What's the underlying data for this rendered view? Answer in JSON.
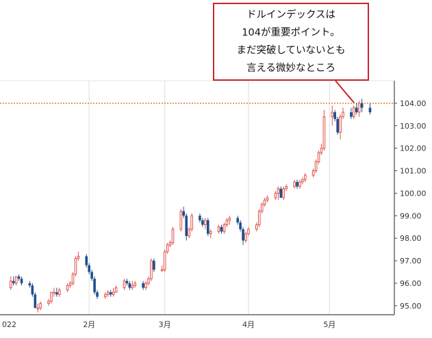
{
  "chart_data": {
    "type": "candlestick",
    "title": "",
    "xlabel": "",
    "ylabel": "",
    "ylim": [
      94.6,
      105.0
    ],
    "y_ticks": [
      "95.00",
      "96.00",
      "97.00",
      "98.00",
      "99.00",
      "100.00",
      "101.00",
      "102.00",
      "103.00",
      "104.00"
    ],
    "x_tick_labels": [
      {
        "label": "022",
        "date": "2022-01-01"
      },
      {
        "label": "2月",
        "date": "2022-02-01"
      },
      {
        "label": "3月",
        "date": "2022-03-01"
      },
      {
        "label": "4月",
        "date": "2022-04-01"
      },
      {
        "label": "5月",
        "date": "2022-05-01"
      }
    ],
    "reference_line": {
      "value": 104.0,
      "color": "#e8781f",
      "style": "dotted"
    },
    "up_color": "#e0504a",
    "down_color": "#1f4e8c",
    "gridlines": "vertical at month starts",
    "series": [
      {
        "dates": [
          "2022-01-03",
          "2022-01-04",
          "2022-01-05",
          "2022-01-06",
          "2022-01-07",
          "2022-01-10",
          "2022-01-11",
          "2022-01-12",
          "2022-01-13",
          "2022-01-14",
          "2022-01-17",
          "2022-01-18",
          "2022-01-19",
          "2022-01-20",
          "2022-01-21",
          "2022-01-24",
          "2022-01-25",
          "2022-01-26",
          "2022-01-27",
          "2022-01-28",
          "2022-01-31",
          "2022-02-01",
          "2022-02-02",
          "2022-02-03",
          "2022-02-04",
          "2022-02-07",
          "2022-02-08",
          "2022-02-09",
          "2022-02-10",
          "2022-02-11",
          "2022-02-14",
          "2022-02-15",
          "2022-02-16",
          "2022-02-17",
          "2022-02-18",
          "2022-02-21",
          "2022-02-22",
          "2022-02-23",
          "2022-02-24",
          "2022-02-25",
          "2022-02-28",
          "2022-03-01",
          "2022-03-02",
          "2022-03-03",
          "2022-03-04",
          "2022-03-07",
          "2022-03-08",
          "2022-03-09",
          "2022-03-10",
          "2022-03-11",
          "2022-03-14",
          "2022-03-15",
          "2022-03-16",
          "2022-03-17",
          "2022-03-18",
          "2022-03-21",
          "2022-03-22",
          "2022-03-23",
          "2022-03-24",
          "2022-03-25",
          "2022-03-28",
          "2022-03-29",
          "2022-03-30",
          "2022-03-31",
          "2022-04-01",
          "2022-04-04",
          "2022-04-05",
          "2022-04-06",
          "2022-04-07",
          "2022-04-08",
          "2022-04-11",
          "2022-04-12",
          "2022-04-13",
          "2022-04-14",
          "2022-04-15",
          "2022-04-18",
          "2022-04-19",
          "2022-04-20",
          "2022-04-21",
          "2022-04-22",
          "2022-04-25",
          "2022-04-26",
          "2022-04-27",
          "2022-04-28",
          "2022-04-29",
          "2022-05-02",
          "2022-05-03",
          "2022-05-04",
          "2022-05-05",
          "2022-05-06",
          "2022-05-09",
          "2022-05-10",
          "2022-05-11",
          "2022-05-12",
          "2022-05-13",
          "2022-05-16"
        ],
        "open": [
          95.8,
          96.1,
          96.0,
          96.3,
          96.2,
          96.0,
          95.9,
          95.5,
          94.9,
          94.9,
          95.1,
          95.2,
          95.6,
          95.6,
          95.5,
          95.7,
          95.9,
          96.0,
          96.4,
          97.1,
          97.2,
          96.8,
          96.5,
          96.2,
          95.6,
          95.4,
          95.5,
          95.6,
          95.5,
          95.6,
          95.8,
          96.1,
          96.0,
          95.8,
          95.9,
          96.0,
          95.8,
          96.0,
          96.2,
          97.0,
          96.6,
          96.6,
          97.4,
          97.7,
          97.8,
          98.4,
          99.2,
          99.0,
          98.1,
          98.4,
          99.0,
          98.8,
          98.6,
          98.8,
          98.2,
          98.3,
          98.5,
          98.3,
          98.6,
          98.8,
          98.9,
          98.7,
          98.4,
          97.9,
          98.2,
          98.4,
          98.6,
          99.2,
          99.5,
          99.7,
          99.8,
          100.0,
          100.2,
          99.8,
          100.2,
          100.3,
          100.5,
          100.3,
          100.5,
          100.6,
          100.8,
          101.0,
          101.4,
          101.8,
          102.0,
          103.4,
          103.6,
          103.3,
          102.7,
          103.4,
          103.6,
          103.4,
          103.8,
          103.6,
          104.0,
          103.8
        ],
        "high": [
          96.3,
          96.3,
          96.3,
          96.4,
          96.3,
          96.1,
          96.0,
          95.6,
          95.1,
          95.2,
          95.3,
          95.6,
          95.8,
          95.8,
          95.8,
          96.0,
          96.1,
          96.5,
          97.2,
          97.4,
          97.3,
          96.9,
          96.6,
          96.3,
          95.7,
          95.6,
          95.7,
          95.7,
          95.8,
          95.9,
          96.2,
          96.2,
          96.1,
          96.1,
          96.1,
          96.1,
          96.1,
          96.3,
          97.1,
          97.1,
          96.8,
          97.5,
          97.8,
          97.9,
          98.5,
          99.3,
          99.4,
          99.1,
          98.5,
          99.1,
          99.1,
          98.9,
          98.9,
          98.9,
          98.4,
          98.6,
          98.6,
          98.7,
          98.9,
          99.0,
          99.0,
          98.8,
          98.5,
          98.3,
          98.5,
          98.7,
          99.3,
          99.6,
          99.8,
          99.9,
          100.1,
          100.3,
          100.3,
          100.3,
          100.4,
          100.6,
          100.6,
          100.6,
          100.7,
          100.9,
          101.1,
          101.5,
          101.9,
          102.2,
          103.7,
          103.9,
          103.7,
          103.4,
          103.5,
          103.8,
          103.8,
          103.9,
          104.0,
          104.1,
          104.2,
          104.0
        ],
        "low": [
          95.7,
          95.9,
          95.9,
          96.1,
          95.9,
          95.8,
          95.4,
          94.9,
          94.7,
          94.8,
          95.0,
          95.1,
          95.4,
          95.4,
          95.4,
          95.6,
          95.8,
          95.9,
          96.3,
          97.0,
          96.7,
          96.4,
          96.1,
          95.5,
          95.3,
          95.3,
          95.4,
          95.4,
          95.4,
          95.6,
          95.7,
          95.9,
          95.7,
          95.7,
          95.8,
          95.7,
          95.7,
          95.9,
          96.1,
          96.5,
          96.5,
          96.5,
          97.3,
          97.6,
          97.7,
          98.3,
          98.9,
          97.9,
          98.0,
          98.3,
          98.7,
          98.5,
          98.4,
          98.1,
          98.0,
          98.2,
          98.2,
          98.2,
          98.5,
          98.6,
          98.6,
          98.3,
          97.7,
          97.8,
          98.1,
          98.3,
          98.5,
          99.1,
          99.4,
          99.6,
          99.7,
          99.7,
          99.8,
          99.7,
          100.1,
          100.2,
          100.2,
          100.2,
          100.4,
          100.5,
          100.7,
          100.9,
          101.3,
          101.7,
          101.9,
          103.0,
          103.2,
          102.6,
          102.4,
          103.3,
          103.3,
          103.3,
          103.5,
          103.4,
          103.6,
          103.5
        ],
        "close": [
          96.1,
          96.0,
          96.3,
          96.2,
          96.0,
          95.9,
          95.5,
          94.9,
          94.9,
          95.1,
          95.2,
          95.6,
          95.6,
          95.5,
          95.7,
          95.9,
          96.0,
          96.4,
          97.1,
          97.2,
          96.8,
          96.5,
          96.2,
          95.6,
          95.4,
          95.5,
          95.6,
          95.5,
          95.6,
          95.8,
          96.1,
          96.0,
          95.8,
          95.9,
          96.0,
          95.8,
          96.0,
          96.2,
          97.0,
          96.6,
          96.6,
          97.4,
          97.7,
          97.8,
          98.4,
          99.2,
          99.0,
          98.1,
          98.4,
          99.0,
          98.8,
          98.6,
          98.8,
          98.2,
          98.3,
          98.5,
          98.3,
          98.6,
          98.8,
          98.9,
          98.7,
          98.4,
          97.9,
          98.2,
          98.4,
          98.6,
          99.2,
          99.5,
          99.7,
          99.8,
          100.0,
          100.2,
          99.8,
          100.2,
          100.3,
          100.5,
          100.3,
          100.5,
          100.6,
          100.8,
          101.0,
          101.4,
          101.8,
          102.0,
          103.4,
          103.6,
          103.3,
          102.7,
          103.4,
          103.6,
          103.4,
          103.8,
          103.6,
          104.0,
          103.8,
          103.6
        ]
      }
    ]
  },
  "annotation": {
    "lines": [
      "ドルインデックスは",
      "104が重要ポイント。",
      "まだ突破していないとも",
      "言える微妙なところ"
    ]
  }
}
